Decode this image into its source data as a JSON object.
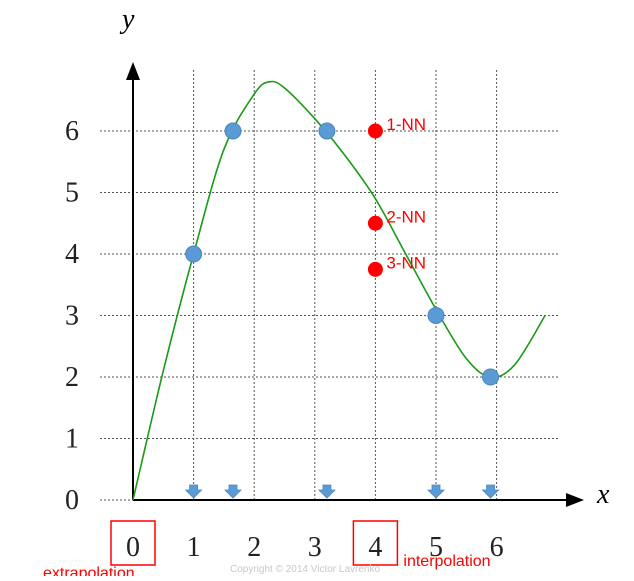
{
  "chart_data": {
    "type": "scatter",
    "x_axis_label": "x",
    "y_axis_label": "y",
    "x_ticks": [
      "0",
      "1",
      "2",
      "3",
      "4",
      "5",
      "6"
    ],
    "y_ticks": [
      "0",
      "1",
      "2",
      "3",
      "4",
      "5",
      "6"
    ],
    "xlim": [
      0,
      7
    ],
    "ylim": [
      0,
      7
    ],
    "grid": true,
    "curve": {
      "x": [
        0,
        0.5,
        1.0,
        1.5,
        2.0,
        2.25,
        2.5,
        3.0,
        3.5,
        4.0,
        4.5,
        5.0,
        5.5,
        5.9,
        6.3,
        6.8
      ],
      "y": [
        0,
        2.1,
        4.0,
        5.7,
        6.6,
        6.8,
        6.7,
        6.2,
        5.6,
        4.9,
        4.0,
        3.1,
        2.3,
        2.0,
        2.2,
        3.0
      ]
    },
    "training_points": {
      "x": [
        1.0,
        1.65,
        3.2,
        5.0,
        5.9
      ],
      "y": [
        4.0,
        6.0,
        6.0,
        3.0,
        2.0
      ],
      "color": "#5b9bd5"
    },
    "query_points": [
      {
        "label": "1-NN",
        "x": 4.0,
        "y": 6.0
      },
      {
        "label": "2-NN",
        "x": 4.0,
        "y": 4.5
      },
      {
        "label": "3-NN",
        "x": 4.0,
        "y": 3.75
      }
    ],
    "query_color": "#ff0000",
    "arrow_markers_x": [
      1.0,
      1.65,
      3.2,
      5.0,
      5.9
    ],
    "boxed_ticks": [
      {
        "tick": "0",
        "annotation": "extrapolation"
      },
      {
        "tick": "4",
        "annotation": "interpolation"
      }
    ],
    "curve_color": "#1a9a1a",
    "annotation_color": "#ff0000"
  },
  "footer": {
    "copyright": "Copyright © 2014 Victor Lavrenko"
  }
}
